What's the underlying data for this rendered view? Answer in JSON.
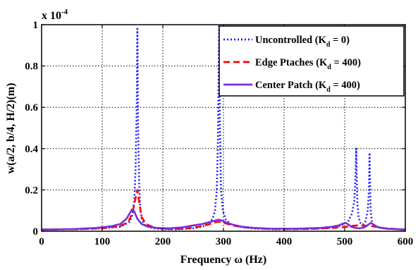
{
  "chart_data": {
    "type": "line",
    "xlabel": "Frequency ω (Hz)",
    "ylabel": "w(a/2, b/4, H/2)(m)",
    "xlim": [
      0,
      600
    ],
    "ylim": [
      0,
      1
    ],
    "y_exponent": {
      "base": "x 10",
      "power": "-4"
    },
    "grid": true,
    "legend_placement": "top-right",
    "x_ticks": [
      "0",
      "100",
      "200",
      "300",
      "400",
      "500",
      "600"
    ],
    "y_ticks": [
      "0",
      "0.2",
      "0.4",
      "0.6",
      "0.8",
      "1"
    ],
    "series": [
      {
        "name": "Uncontrolled (K",
        "name_sub": "d",
        "name_tail": " = 0)",
        "color": "#1a1aff",
        "dash": "dotted",
        "x": [
          0,
          60,
          100,
          130,
          145,
          150,
          153,
          155,
          157,
          158,
          159,
          161,
          163,
          166,
          172,
          185,
          200,
          215,
          230,
          250,
          265,
          275,
          282,
          286,
          289,
          291,
          292,
          293,
          294,
          296,
          299,
          304,
          312,
          325,
          345,
          380,
          420,
          460,
          480,
          495,
          505,
          512,
          516,
          518,
          519,
          520,
          521,
          523,
          526,
          530,
          534,
          538,
          540,
          541,
          542,
          543,
          545,
          548,
          555,
          570,
          600
        ],
        "y": [
          0.008,
          0.01,
          0.014,
          0.022,
          0.045,
          0.08,
          0.15,
          0.3,
          0.62,
          0.98,
          0.55,
          0.22,
          0.1,
          0.05,
          0.025,
          0.014,
          0.01,
          0.009,
          0.01,
          0.014,
          0.022,
          0.035,
          0.06,
          0.1,
          0.2,
          0.45,
          0.75,
          1.0,
          0.55,
          0.2,
          0.1,
          0.055,
          0.035,
          0.022,
          0.014,
          0.01,
          0.01,
          0.013,
          0.018,
          0.028,
          0.045,
          0.085,
          0.15,
          0.28,
          0.4,
          0.25,
          0.13,
          0.065,
          0.04,
          0.032,
          0.045,
          0.1,
          0.2,
          0.38,
          0.2,
          0.09,
          0.045,
          0.028,
          0.018,
          0.012,
          0.008
        ]
      },
      {
        "name": "Edge Ptaches (K",
        "name_sub": "d",
        "name_tail": " = 400)",
        "color": "#ff0000",
        "dash": "dashed",
        "x": [
          0,
          60,
          100,
          130,
          143,
          150,
          155,
          158,
          161,
          165,
          172,
          185,
          200,
          220,
          240,
          260,
          275,
          285,
          292,
          300,
          312,
          330,
          360,
          400,
          440,
          480,
          500,
          510,
          520,
          530,
          540,
          550,
          565,
          600
        ],
        "y": [
          0.008,
          0.01,
          0.014,
          0.025,
          0.045,
          0.09,
          0.16,
          0.2,
          0.14,
          0.07,
          0.035,
          0.018,
          0.012,
          0.01,
          0.014,
          0.022,
          0.032,
          0.042,
          0.046,
          0.042,
          0.03,
          0.02,
          0.013,
          0.01,
          0.011,
          0.016,
          0.02,
          0.025,
          0.028,
          0.027,
          0.026,
          0.022,
          0.015,
          0.008
        ]
      },
      {
        "name": "Center Patch (K",
        "name_sub": "d",
        "name_tail": " = 400)",
        "color": "#7f2bd9",
        "dash": "solid",
        "x": [
          0,
          50,
          90,
          115,
          130,
          140,
          145,
          149,
          153,
          158,
          165,
          175,
          190,
          210,
          230,
          250,
          265,
          278,
          287,
          292,
          297,
          305,
          315,
          330,
          350,
          380,
          420,
          460,
          480,
          490,
          497,
          502,
          507,
          512,
          518,
          525,
          532,
          538,
          543,
          548,
          553,
          560,
          570,
          585,
          600
        ],
        "y": [
          0.008,
          0.01,
          0.016,
          0.024,
          0.035,
          0.06,
          0.085,
          0.105,
          0.095,
          0.06,
          0.035,
          0.022,
          0.016,
          0.014,
          0.018,
          0.028,
          0.035,
          0.045,
          0.052,
          0.056,
          0.052,
          0.042,
          0.032,
          0.022,
          0.016,
          0.012,
          0.012,
          0.016,
          0.022,
          0.028,
          0.037,
          0.04,
          0.03,
          0.02,
          0.016,
          0.014,
          0.018,
          0.03,
          0.04,
          0.032,
          0.022,
          0.016,
          0.012,
          0.01,
          0.008
        ]
      }
    ]
  }
}
